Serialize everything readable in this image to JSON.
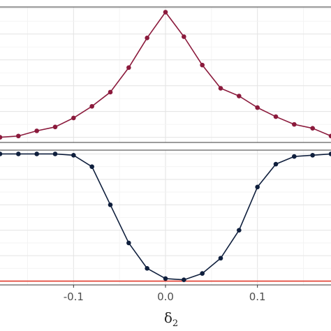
{
  "chart_data": [
    {
      "type": "line",
      "panel": "top",
      "color": "#8b1a3c",
      "xlim": [
        -0.18,
        0.18
      ],
      "ylim": [
        -0.04,
        1.01
      ],
      "x": [
        -0.18,
        -0.16,
        -0.14,
        -0.12,
        -0.1,
        -0.08,
        -0.06,
        -0.04,
        -0.02,
        0.0,
        0.02,
        0.04,
        0.06,
        0.08,
        0.1,
        0.12,
        0.14,
        0.16,
        0.18
      ],
      "series": [
        {
          "values": [
            0.0,
            0.01,
            0.05,
            0.08,
            0.15,
            0.24,
            0.35,
            0.54,
            0.77,
            0.97,
            0.78,
            0.56,
            0.38,
            0.32,
            0.23,
            0.16,
            0.1,
            0.07,
            0.01
          ]
        }
      ]
    },
    {
      "type": "line",
      "panel": "bottom",
      "color": "#0f1f3d",
      "xlim": [
        -0.18,
        0.18
      ],
      "ylim": [
        -0.03,
        1.03
      ],
      "x": [
        -0.18,
        -0.16,
        -0.14,
        -0.12,
        -0.1,
        -0.08,
        -0.06,
        -0.04,
        -0.02,
        0.0,
        0.02,
        0.04,
        0.06,
        0.08,
        0.1,
        0.12,
        0.14,
        0.16,
        0.18
      ],
      "series": [
        {
          "values": [
            1.0,
            1.0,
            1.0,
            1.0,
            0.99,
            0.9,
            0.6,
            0.3,
            0.1,
            0.02,
            0.01,
            0.06,
            0.18,
            0.4,
            0.74,
            0.92,
            0.98,
            0.99,
            1.0
          ]
        }
      ],
      "reference_line": {
        "y": 0.0,
        "color": "#e23b2e"
      },
      "xticks": [
        -0.1,
        0.0,
        0.1
      ],
      "xtick_labels": [
        "-0.1",
        "0.0",
        "0.1"
      ],
      "xlabel_main": "δ",
      "xlabel_sub": "2"
    }
  ]
}
